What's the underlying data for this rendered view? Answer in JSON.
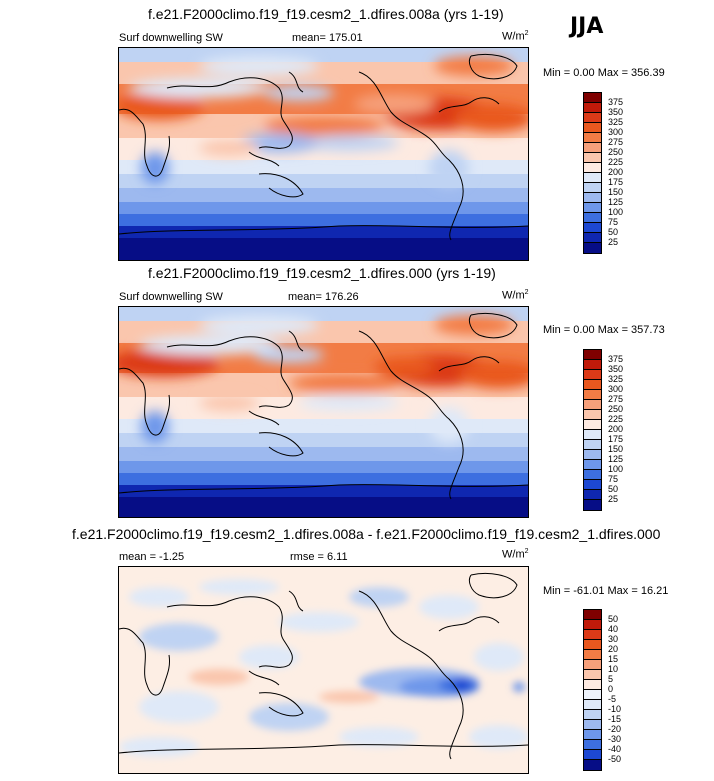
{
  "season": "JJA",
  "panels": [
    {
      "title": "f.e21.F2000climo.f19_f19.cesm2_1.dfires.008a (yrs 1-19)",
      "left_label": "Surf downwelling SW",
      "center_label": "mean= 175.01",
      "units": "W/m",
      "units_sup": "2",
      "minmax": "Min =  0.00 Max = 356.39",
      "colorbar_labels": [
        "375",
        "350",
        "325",
        "300",
        "275",
        "250",
        "225",
        "200",
        "175",
        "150",
        "125",
        "100",
        "75",
        "50",
        "25"
      ]
    },
    {
      "title": "f.e21.F2000climo.f19_f19.cesm2_1.dfires.000 (yrs 1-19)",
      "left_label": "Surf downwelling SW",
      "center_label": "mean= 176.26",
      "units": "W/m",
      "units_sup": "2",
      "minmax": "Min =  0.00 Max = 357.73",
      "colorbar_labels": [
        "375",
        "350",
        "325",
        "300",
        "275",
        "250",
        "225",
        "200",
        "175",
        "150",
        "125",
        "100",
        "75",
        "50",
        "25"
      ]
    },
    {
      "title": "f.e21.F2000climo.f19_f19.cesm2_1.dfires.008a - f.e21.F2000climo.f19_f19.cesm2_1.dfires.000",
      "left_label": "mean =  -1.25",
      "center_label": "rmse =  6.11",
      "units": "W/m",
      "units_sup": "2",
      "minmax": "Min = -61.01 Max =  16.21",
      "colorbar_labels": [
        "50",
        "40",
        "30",
        "20",
        "15",
        "10",
        "5",
        "0",
        "-5",
        "-10",
        "-15",
        "-20",
        "-30",
        "-40",
        "-50"
      ]
    }
  ],
  "colors": {
    "abs_scale": [
      "#7f0000",
      "#c01a0a",
      "#dc3a18",
      "#e9581f",
      "#f27c45",
      "#f6a07b",
      "#fac6ad",
      "#fdeae1",
      "#dfe9f8",
      "#bfd3f3",
      "#9db9ef",
      "#6e97ea",
      "#3d6fe0",
      "#1d48d2",
      "#0f27b0",
      "#060d86"
    ],
    "diff_scale": [
      "#7f0000",
      "#c01a0a",
      "#dc3a18",
      "#e9581f",
      "#f27c45",
      "#f6a07b",
      "#fac6ad",
      "#fdeae1",
      "#eef3fb",
      "#dfe9f8",
      "#bfd3f3",
      "#9db9ef",
      "#6e97ea",
      "#3d6fe0",
      "#1d48d2",
      "#060d86"
    ],
    "neutral": "#fdeee4"
  }
}
